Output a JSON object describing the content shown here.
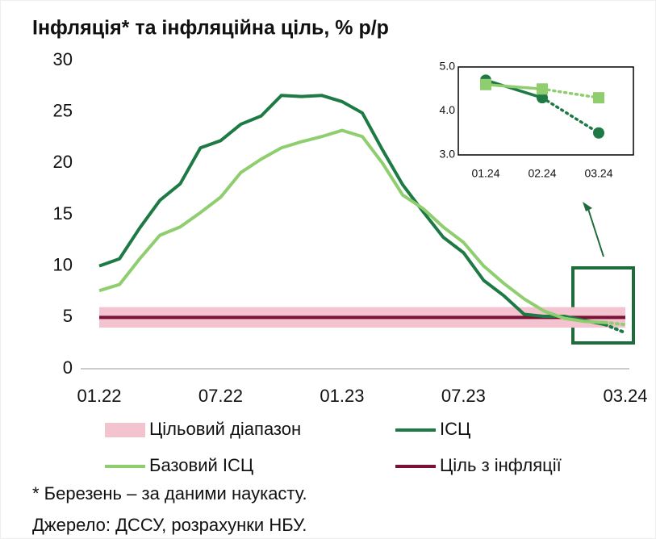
{
  "chart_data": [
    {
      "type": "line",
      "title": "Інфляція* та інфляційна ціль, % р/р",
      "categories": [
        "01.22",
        null,
        null,
        null,
        null,
        null,
        "07.22",
        null,
        null,
        null,
        null,
        null,
        "01.23",
        null,
        null,
        null,
        null,
        null,
        "07.23",
        null,
        null,
        null,
        null,
        null,
        null,
        null,
        "03.24"
      ],
      "series": [
        {
          "name": "ІСЦ",
          "color": "#1e7a45",
          "values": [
            10.0,
            10.7,
            13.7,
            16.4,
            18.0,
            21.5,
            22.2,
            23.8,
            24.6,
            26.6,
            26.5,
            26.6,
            26.0,
            24.9,
            21.3,
            17.9,
            15.3,
            12.8,
            11.3,
            8.6,
            7.1,
            5.3,
            5.1,
            5.1,
            4.7,
            4.3,
            3.5
          ]
        },
        {
          "name": "Базовий ІСЦ",
          "color": "#8fce6f",
          "values": [
            7.6,
            8.2,
            10.7,
            13.0,
            13.8,
            15.2,
            16.7,
            19.1,
            20.4,
            21.5,
            22.1,
            22.6,
            23.2,
            22.6,
            20.0,
            16.9,
            15.6,
            13.8,
            12.3,
            10.0,
            8.3,
            6.8,
            5.6,
            4.9,
            4.6,
            4.5,
            4.3
          ]
        }
      ],
      "band": {
        "name": "Цільовий діапазон",
        "range": [
          4,
          6
        ],
        "color": "#f3c3cf"
      },
      "target": {
        "name": "Ціль з інфляції",
        "value": 5,
        "color": "#7a1136"
      },
      "ylim": [
        0,
        30
      ],
      "yticks": [
        0,
        5,
        10,
        15,
        20,
        25,
        30
      ],
      "last_point_dotted": true
    },
    {
      "type": "line",
      "categories": [
        "01.24",
        "02.24",
        "03.24"
      ],
      "series": [
        {
          "color": "#1e7a45",
          "marker": "circle",
          "values": [
            4.7,
            4.3,
            3.5
          ]
        },
        {
          "color": "#8fce6f",
          "marker": "square",
          "values": [
            4.6,
            4.5,
            4.3
          ]
        }
      ],
      "ylim": [
        3,
        5
      ],
      "yticks": [
        {
          "value": 3,
          "label": "3.0"
        },
        {
          "value": 4,
          "label": "4.0"
        },
        {
          "value": 5,
          "label": "5.0"
        }
      ],
      "last_point_dotted": true
    }
  ],
  "notes": [
    "* Березень – за даними наукасту.",
    "Джерело: ДССУ, розрахунки НБУ."
  ]
}
